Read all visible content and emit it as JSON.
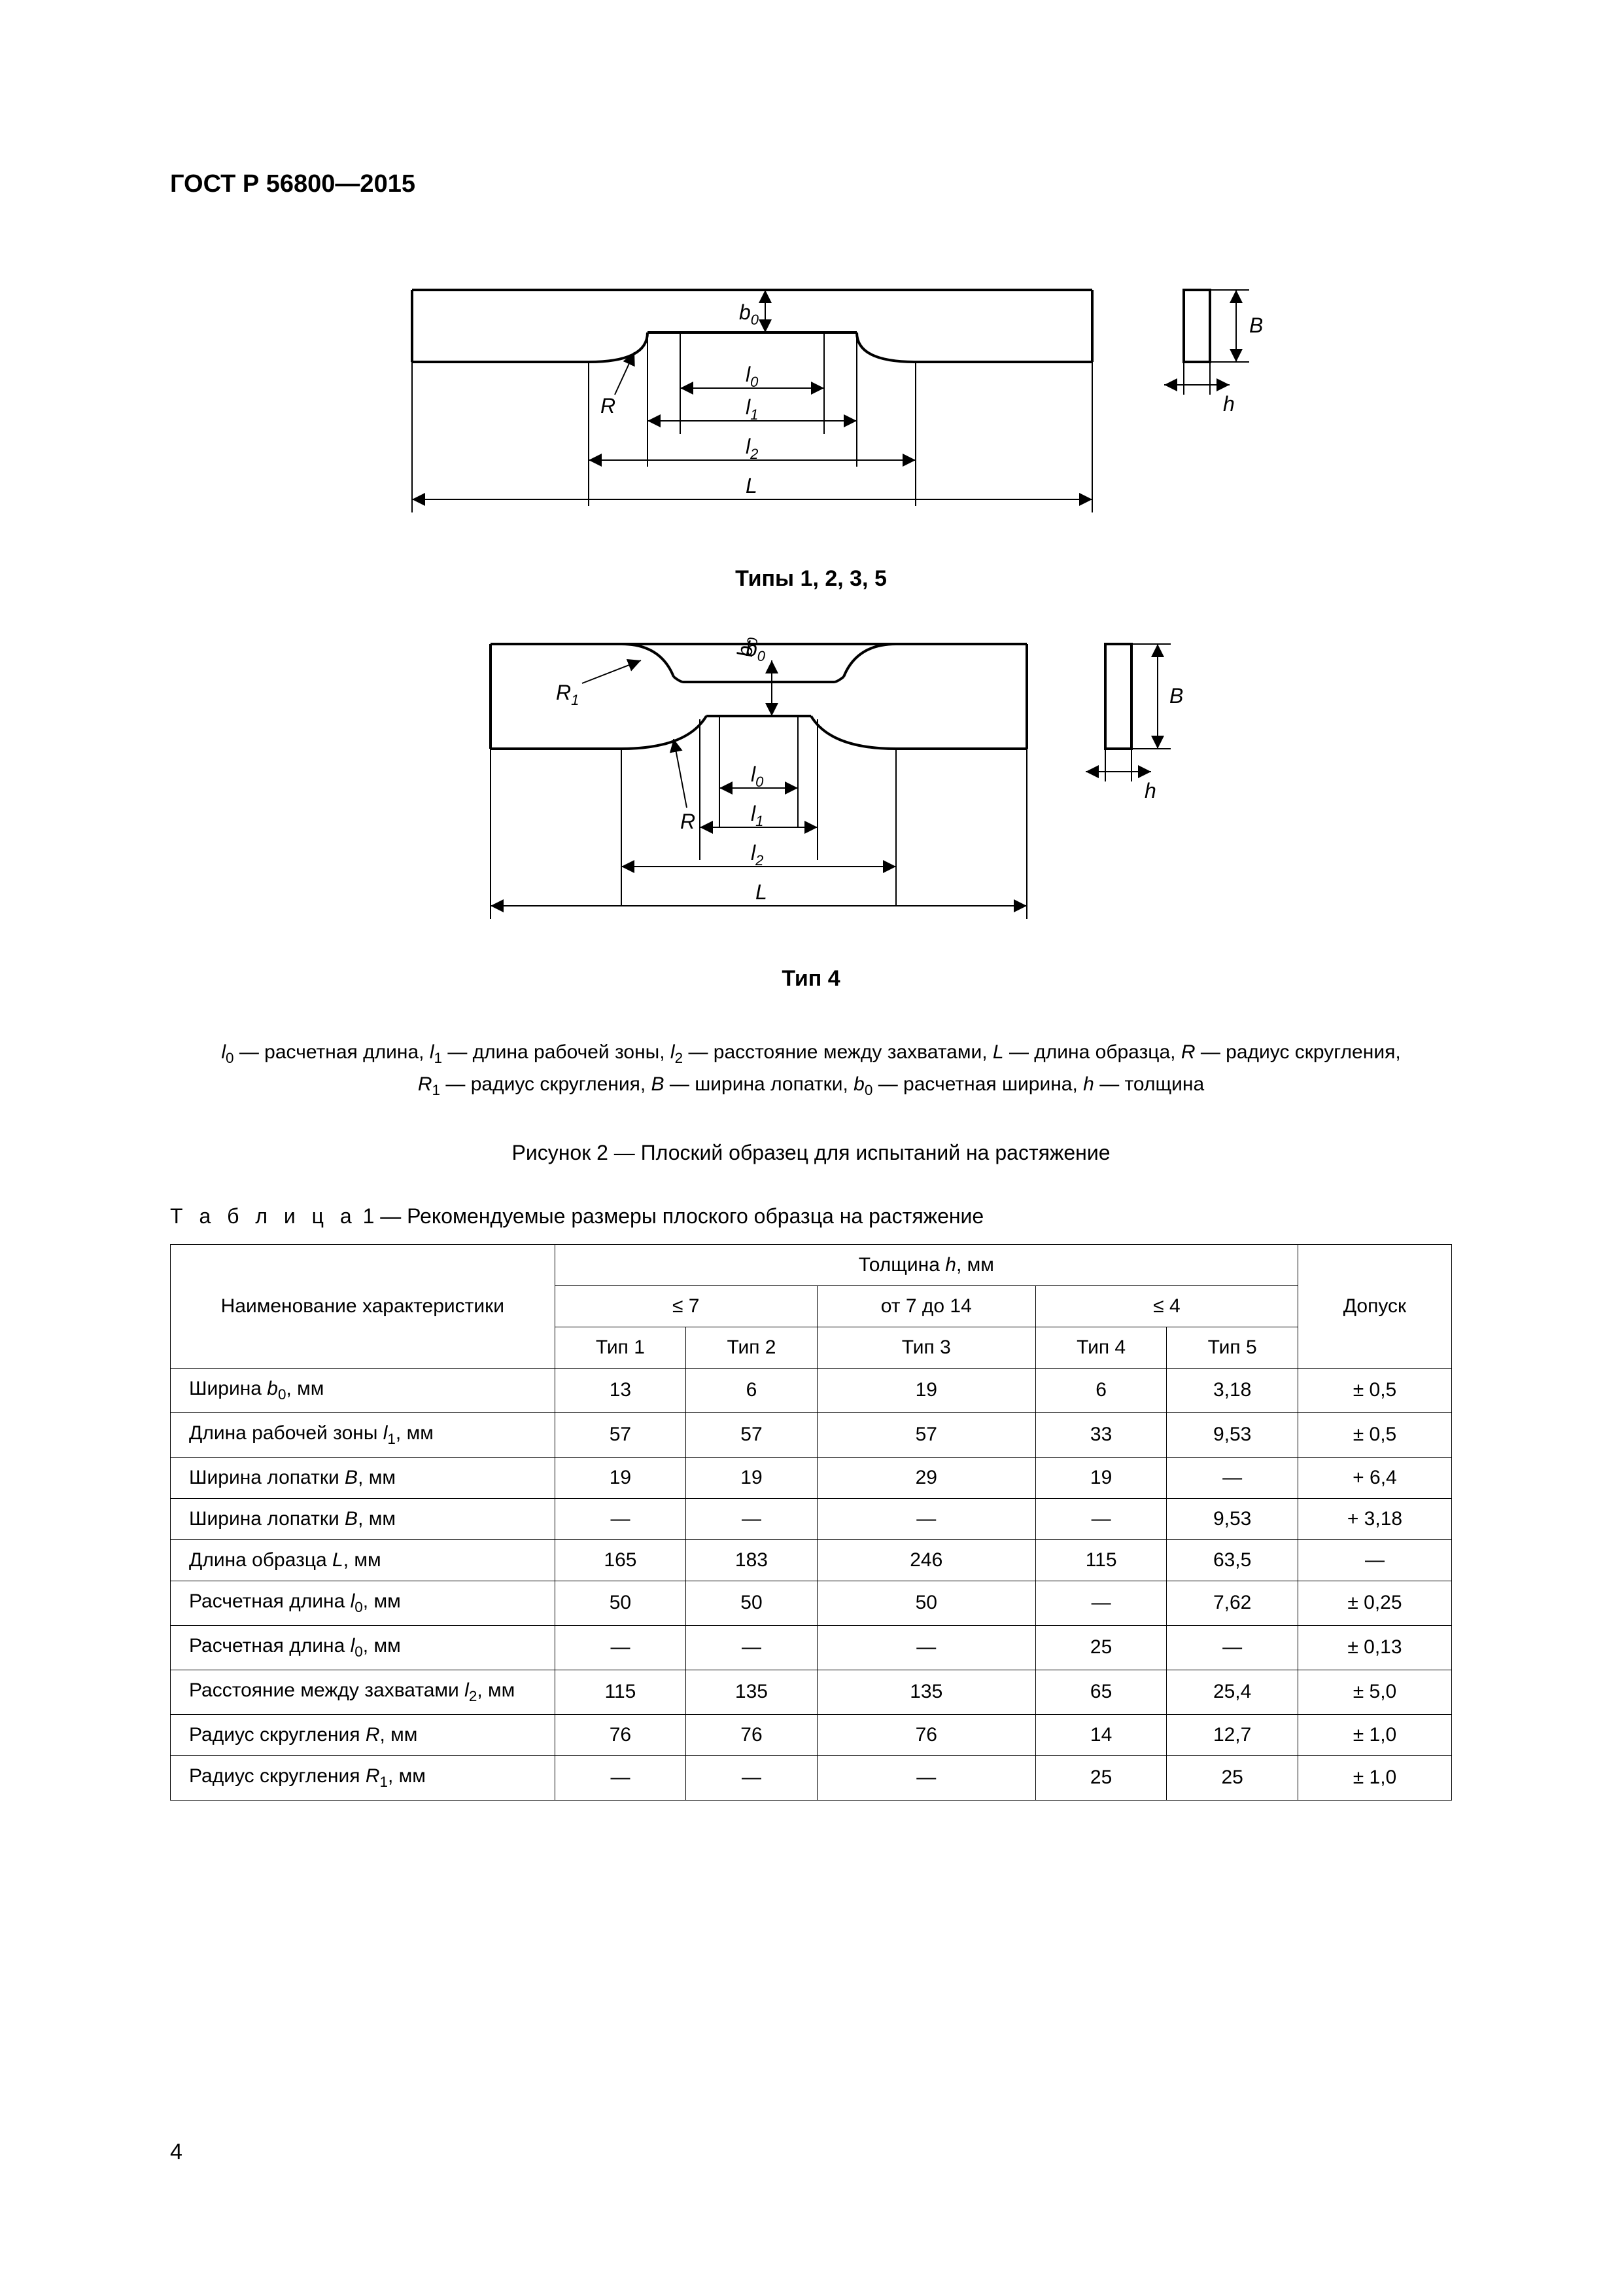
{
  "header": {
    "code": "ГОСТ Р 56800—2015"
  },
  "pageNumber": "4",
  "diagram1": {
    "caption": "Типы 1, 2, 3, 5",
    "stroke": "#000000",
    "bg": "#ffffff",
    "labels": {
      "b0": "b",
      "l0": "l",
      "l1": "l",
      "l2": "l",
      "L": "L",
      "R": "R",
      "B": "B",
      "h": "h"
    }
  },
  "diagram2": {
    "caption": "Тип 4",
    "stroke": "#000000",
    "labels": {
      "b0": "b",
      "l0": "l",
      "l1": "l",
      "l2": "l",
      "L": "L",
      "R": "R",
      "R1": "R",
      "B": "B",
      "h": "h"
    }
  },
  "legend": {
    "line1_prefix": "l",
    "line1_text1": " — расчетная длина, ",
    "line1_l1": "l",
    "line1_text2": " — длина рабочей зоны, ",
    "line1_l2": "l",
    "line1_text3": " — расстояние между захватами, ",
    "line1_L": "L",
    "line1_text4": " — длина образца, ",
    "line1_R": "R",
    "line1_text5": " — радиус скругления,",
    "line2_R1": "R",
    "line2_text1": " — радиус скругления, ",
    "line2_B": "B",
    "line2_text2": " — ширина лопатки, ",
    "line2_b0": "b",
    "line2_text3": " — расчетная ширина, ",
    "line2_h": "h",
    "line2_text4": " — толщина"
  },
  "figureCaption": "Рисунок 2 — Плоский образец для испытаний на растяжение",
  "tableTitle": {
    "spaced": "Т а б л и ц а",
    "rest": "  1 — Рекомендуемые размеры плоского образца на растяжение"
  },
  "table": {
    "border_color": "#000000",
    "header": {
      "name": "Наименование характеристики",
      "thickness": "Толщина ",
      "thickness_var": "h",
      "thickness_unit": ", мм",
      "col_le7": "≤ 7",
      "col_7_14": "от 7 до 14",
      "col_le4": "≤ 4",
      "tolerance": "Допуск",
      "types": [
        "Тип 1",
        "Тип 2",
        "Тип 3",
        "Тип 4",
        "Тип 5"
      ]
    },
    "rows": [
      {
        "name_pre": "Ширина ",
        "name_var": "b",
        "name_sub": "0",
        "name_post": ", мм",
        "v": [
          "13",
          "6",
          "19",
          "6",
          "3,18"
        ],
        "tol": "± 0,5"
      },
      {
        "name_pre": "Длина рабочей зоны ",
        "name_var": "l",
        "name_sub": "1",
        "name_post": ", мм",
        "v": [
          "57",
          "57",
          "57",
          "33",
          "9,53"
        ],
        "tol": "± 0,5"
      },
      {
        "name_pre": "Ширина лопатки ",
        "name_var": "B",
        "name_sub": "",
        "name_post": ", мм",
        "v": [
          "19",
          "19",
          "29",
          "19",
          "—"
        ],
        "tol": "+ 6,4"
      },
      {
        "name_pre": "Ширина лопатки ",
        "name_var": "B",
        "name_sub": "",
        "name_post": ", мм",
        "v": [
          "—",
          "—",
          "—",
          "—",
          "9,53"
        ],
        "tol": "+ 3,18"
      },
      {
        "name_pre": "Длина образца ",
        "name_var": "L",
        "name_sub": "",
        "name_post": ", мм",
        "v": [
          "165",
          "183",
          "246",
          "115",
          "63,5"
        ],
        "tol": "—"
      },
      {
        "name_pre": "Расчетная длина ",
        "name_var": "l",
        "name_sub": "0",
        "name_post": ", мм",
        "v": [
          "50",
          "50",
          "50",
          "—",
          "7,62"
        ],
        "tol": "± 0,25"
      },
      {
        "name_pre": "Расчетная длина ",
        "name_var": "l",
        "name_sub": "0",
        "name_post": ", мм",
        "v": [
          "—",
          "—",
          "—",
          "25",
          "—"
        ],
        "tol": "± 0,13"
      },
      {
        "name_pre": "Расстояние между захватами ",
        "name_var": "l",
        "name_sub": "2",
        "name_post": ", мм",
        "v": [
          "115",
          "135",
          "135",
          "65",
          "25,4"
        ],
        "tol": "± 5,0"
      },
      {
        "name_pre": "Радиус скругления ",
        "name_var": "R",
        "name_sub": "",
        "name_post": ", мм",
        "v": [
          "76",
          "76",
          "76",
          "14",
          "12,7"
        ],
        "tol": "± 1,0"
      },
      {
        "name_pre": "Радиус скругления ",
        "name_var": "R",
        "name_sub": "1",
        "name_post": ", мм",
        "v": [
          "—",
          "—",
          "—",
          "25",
          "25"
        ],
        "tol": "± 1,0"
      }
    ]
  }
}
